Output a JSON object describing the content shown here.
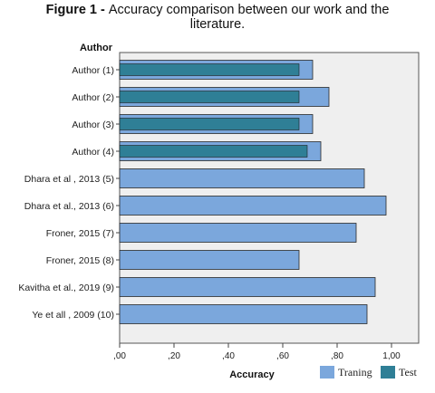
{
  "figure": {
    "title_lead": "Figure 1 - ",
    "title_line1": "Accuracy comparison between our work and the",
    "title_line2": "literature."
  },
  "chart_data": {
    "type": "bar",
    "orientation": "horizontal",
    "title": "Figure 1 - Accuracy comparison between our work and the literature.",
    "ylabel": "Author",
    "xlabel": "Accuracy",
    "xlim": [
      0,
      1.1
    ],
    "x_ticks": [
      ",00",
      ",20",
      ",40",
      ",60",
      ",80",
      "1,00"
    ],
    "x_tick_values": [
      0,
      0.2,
      0.4,
      0.6,
      0.8,
      1.0
    ],
    "grid": false,
    "legend_position": "bottom-right",
    "categories": [
      "Author (1)",
      "Author (2)",
      "Author (3)",
      "Author (4)",
      "Dhara et al , 2013 (5)",
      "Dhara et al., 2013 (6)",
      "Froner, 2015 (7)",
      "Froner, 2015 (8)",
      "Kavitha et al., 2019 (9)",
      "Ye et all , 2009 (10)"
    ],
    "series": [
      {
        "name": "Traning",
        "color": "#7ba7dc",
        "values": [
          0.71,
          0.77,
          0.71,
          0.74,
          0.9,
          0.98,
          0.87,
          0.66,
          0.94,
          0.91
        ]
      },
      {
        "name": "Test",
        "color": "#2f7f96",
        "values": [
          0.66,
          0.66,
          0.66,
          0.69,
          null,
          null,
          null,
          null,
          null,
          null
        ]
      }
    ]
  }
}
